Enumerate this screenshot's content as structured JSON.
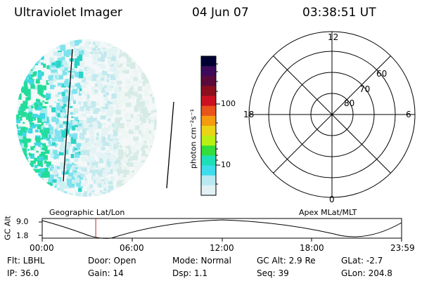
{
  "header": {
    "title": "Ultraviolet Imager",
    "date": "04 Jun 07",
    "time": "03:38:51 UT"
  },
  "colorbar": {
    "unit_label": "photon cm⁻²s⁻¹",
    "ticks": [
      "100",
      "10"
    ],
    "colors": [
      "#000033",
      "#3d0b5a",
      "#5a0b3b",
      "#8b0f1e",
      "#cc1122",
      "#e8541a",
      "#f59b10",
      "#e9d515",
      "#b7f012",
      "#33dd3b",
      "#1ee0b8",
      "#3fdcec",
      "#b8e9f0",
      "#e2f2f4"
    ]
  },
  "polar_plot": {
    "labels": [
      "12",
      "60",
      "70",
      "80",
      "18",
      "6",
      "0"
    ]
  },
  "timeline": {
    "y_axis_label": "GC Alt",
    "y_ticks": [
      "9.0",
      "1.8"
    ],
    "left_label": "Geographic Lat/Lon",
    "right_label": "Apex MLat/MLT",
    "x_ticks": [
      "00:00",
      "06:00",
      "12:00",
      "18:00",
      "23:59"
    ],
    "current_time_fraction": 0.149,
    "marker_color": "#cc2222"
  },
  "info": {
    "flt": "Flt: LBHL",
    "door": "Door: Open",
    "mode": "Mode: Normal",
    "gc_alt": "GC Alt: 2.9 Re",
    "glat": "GLat:  -2.7",
    "ip": "IP: 36.0",
    "gain": "Gain: 14",
    "dsp": "Dsp:    1.1",
    "seq": "Seq: 39",
    "glon": "GLon: 204.8"
  }
}
